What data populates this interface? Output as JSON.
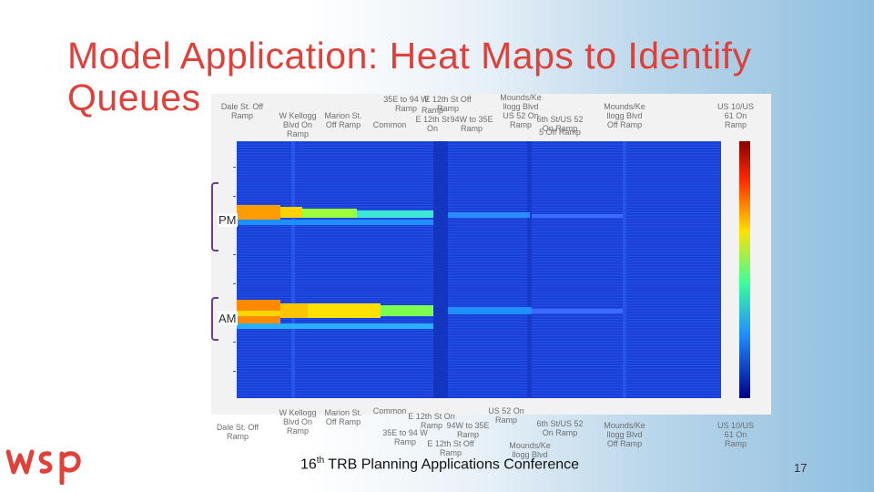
{
  "slide": {
    "title": "Model Application: Heat Maps to Identify Queues",
    "page_number": "17",
    "conference": {
      "ordinal": "16",
      "suffix": "th",
      "rest": " TRB Planning Applications Conference"
    }
  },
  "labels": {
    "pm": "PM",
    "am": "AM"
  },
  "top_labels": [
    "Dale St. Off\nRamp",
    "W Kellogg\nBlvd On\nRamp",
    "Marion St.\nOff Ramp",
    "35E to 94 W\nRamp",
    "Common",
    "E 12th St Off\nRamp",
    "Ramp\nE 12th St On",
    "94W to 35E\nRamp",
    "Mounds/Ke\nllogg Blvd\nUS 52 On\nRamp",
    "6th St/US 52\nOn Ramp",
    "5 Off Ramp",
    "Mounds/Ke\nllogg Blvd\nOff Ramp",
    "US 10/US\n61 On\nRamp"
  ],
  "bottom_labels": [
    "Dale St. Off\nRamp",
    "W Kellogg\nBlvd On\nRamp",
    "Marion St.\nOff Ramp",
    "Common",
    "E 12th St On\nRamp",
    "94W to 35E\nRamp",
    "35E to 94 W\nRamp",
    "E 12th St Off\nRamp",
    "US 52 On\nRamp",
    "6th St/US 52\nOn Ramp",
    "Mounds/Ke\nllogg Blvd",
    "Mounds/Ke\nllogg Blvd\nOff Ramp",
    "US 10/US\n61 On\nRamp"
  ],
  "colors": {
    "title": "#e0403a",
    "bracket": "#6b3f8e",
    "heat_low": "#1a3fd6",
    "heat_high": "#e60000"
  }
}
